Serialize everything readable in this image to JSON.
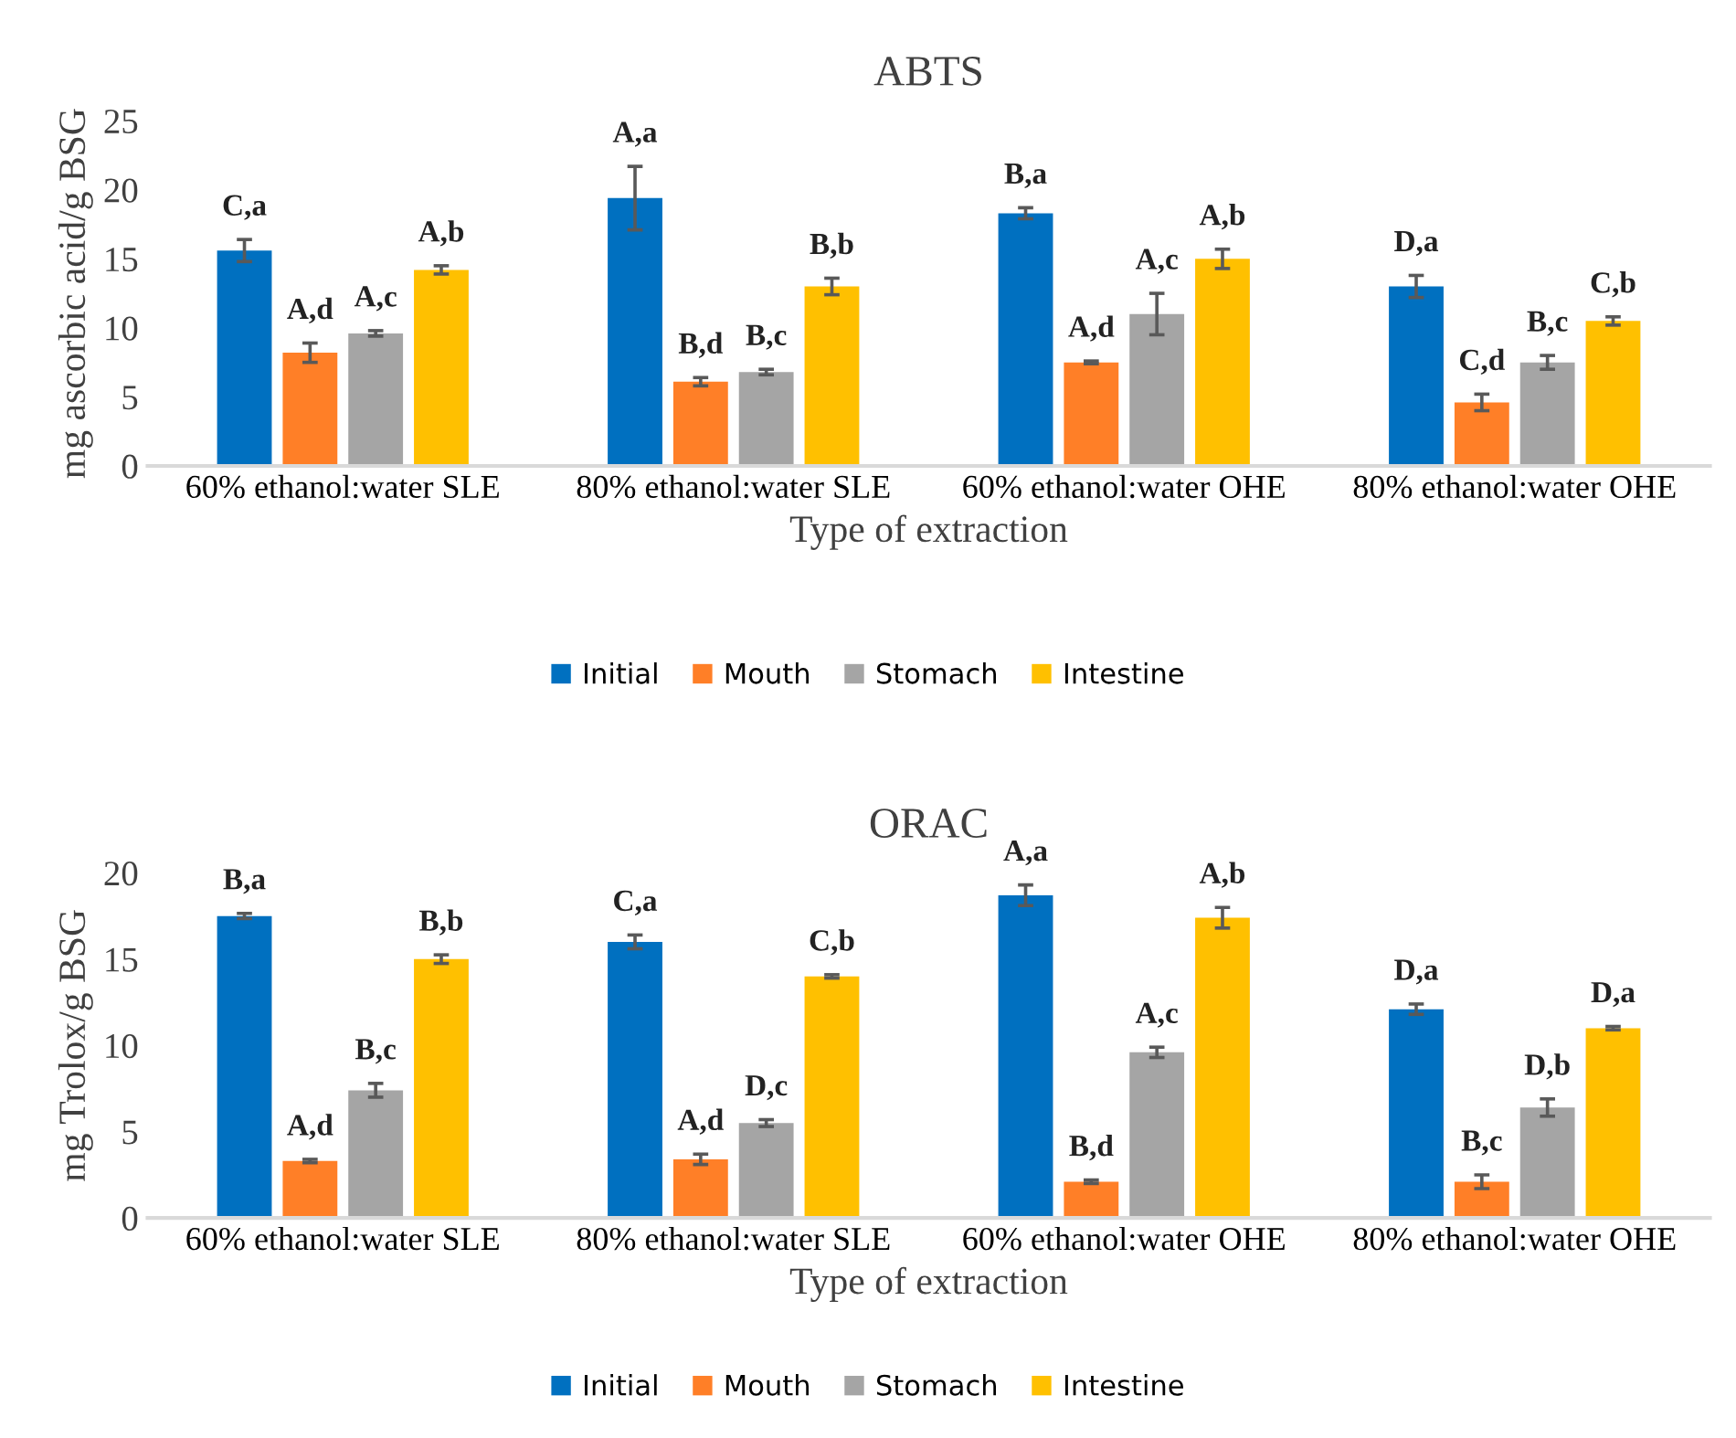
{
  "chart_data": [
    {
      "type": "bar",
      "title": "ABTS",
      "xlabel": "Type of extraction",
      "ylabel": "mg ascorbic acid/g BSG",
      "categories": [
        "60% ethanol:water SLE",
        "80% ethanol:water SLE",
        "60% ethanol:water OHE",
        "80% ethanol:water OHE"
      ],
      "ylim": [
        0,
        25
      ],
      "yticks": [
        0,
        5,
        10,
        15,
        20,
        25
      ],
      "grid": false,
      "legend": "bottom",
      "series": [
        {
          "name": "Initial",
          "color": "#0070c0",
          "values": [
            15.6,
            19.4,
            18.3,
            13.0
          ],
          "errors": [
            0.8,
            2.3,
            0.4,
            0.8
          ],
          "value_labels": [
            "C,a",
            "A,a",
            "B,a",
            "D,a"
          ]
        },
        {
          "name": "Mouth",
          "color": "#ff7f27",
          "values": [
            8.2,
            6.1,
            7.5,
            4.6
          ],
          "errors": [
            0.7,
            0.3,
            0.1,
            0.6
          ],
          "value_labels": [
            "A,d",
            "B,d",
            "A,d",
            "C,d"
          ]
        },
        {
          "name": "Stomach",
          "color": "#a5a5a5",
          "values": [
            9.6,
            6.8,
            11.0,
            7.5
          ],
          "errors": [
            0.2,
            0.2,
            1.5,
            0.5
          ],
          "value_labels": [
            "A,c",
            "B,c",
            "A,c",
            "B,c"
          ]
        },
        {
          "name": "Intestine",
          "color": "#ffc000",
          "values": [
            14.2,
            13.0,
            15.0,
            10.5
          ],
          "errors": [
            0.3,
            0.6,
            0.7,
            0.3
          ],
          "value_labels": [
            "A,b",
            "B,b",
            "A,b",
            "C,b"
          ]
        }
      ]
    },
    {
      "type": "bar",
      "title": "ORAC",
      "xlabel": "Type of extraction",
      "ylabel": "mg Trolox/g BSG",
      "categories": [
        "60% ethanol:water SLE",
        "80% ethanol:water SLE",
        "60% ethanol:water OHE",
        "80% ethanol:water OHE"
      ],
      "ylim": [
        0,
        20
      ],
      "yticks": [
        0,
        5,
        10,
        15,
        20
      ],
      "grid": false,
      "legend": "bottom",
      "series": [
        {
          "name": "Initial",
          "color": "#0070c0",
          "values": [
            17.5,
            16.0,
            18.7,
            12.1
          ],
          "errors": [
            0.15,
            0.4,
            0.6,
            0.3
          ],
          "value_labels": [
            "B,a",
            "C,a",
            "A,a",
            "D,a"
          ]
        },
        {
          "name": "Mouth",
          "color": "#ff7f27",
          "values": [
            3.3,
            3.4,
            2.1,
            2.1
          ],
          "errors": [
            0.1,
            0.3,
            0.1,
            0.4
          ],
          "value_labels": [
            "A,d",
            "A,d",
            "B,d",
            "B,c"
          ]
        },
        {
          "name": "Stomach",
          "color": "#a5a5a5",
          "values": [
            7.4,
            5.5,
            9.6,
            6.4
          ],
          "errors": [
            0.4,
            0.2,
            0.3,
            0.5
          ],
          "value_labels": [
            "B,c",
            "D,c",
            "A,c",
            "D,b"
          ]
        },
        {
          "name": "Intestine",
          "color": "#ffc000",
          "values": [
            15.0,
            14.0,
            17.4,
            11.0
          ],
          "errors": [
            0.25,
            0.1,
            0.6,
            0.1
          ],
          "value_labels": [
            "B,b",
            "C,b",
            "A,b",
            "D,a"
          ]
        }
      ]
    }
  ]
}
